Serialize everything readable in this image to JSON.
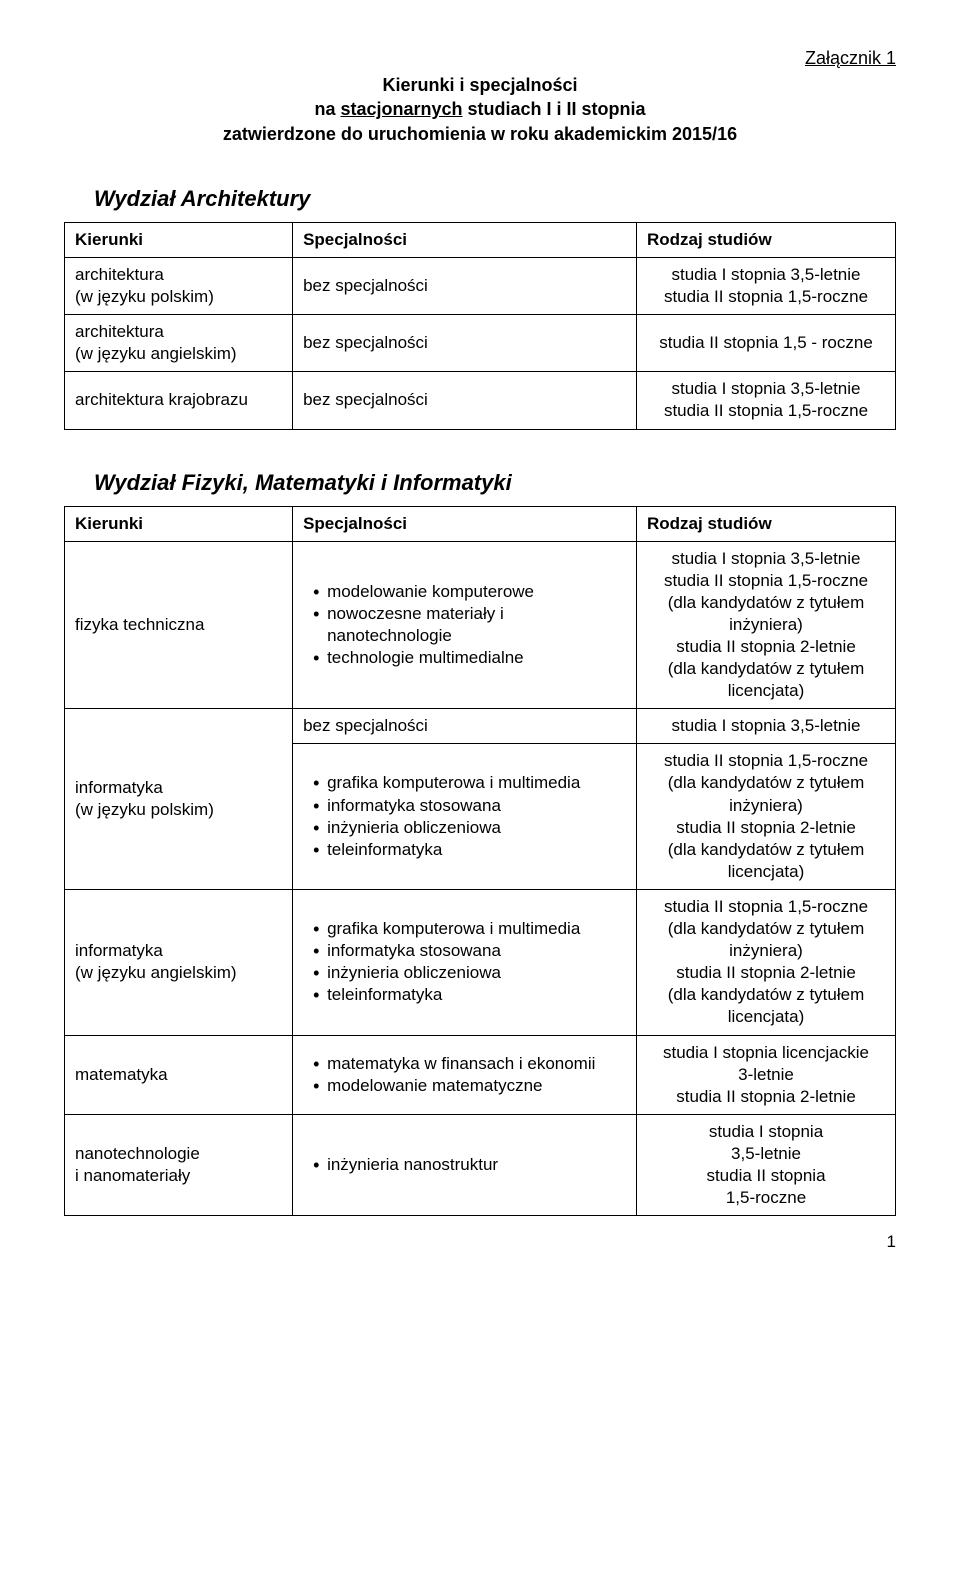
{
  "attachment_label": "Załącznik 1",
  "doc_title": {
    "line1": "Kierunki i specjalności",
    "line2a": "na ",
    "line2b": "stacjonarnych",
    "line2c": " studiach I i II stopnia",
    "line3": "zatwierdzone do uruchomienia w roku akademickim 2015/16"
  },
  "columns": {
    "kierunki": "Kierunki",
    "specjalnosci": "Specjalności",
    "rodzaj": "Rodzaj studiów"
  },
  "section1": {
    "title": "Wydział Architektury",
    "rows": [
      {
        "kierunek_line1": "architektura",
        "kierunek_line2": "(w języku polskim)",
        "spec": "bez specjalności",
        "rodzaj_line1": "studia I stopnia 3,5-letnie",
        "rodzaj_line2": "studia II stopnia 1,5-roczne"
      },
      {
        "kierunek_line1": "architektura",
        "kierunek_line2": "(w języku angielskim)",
        "spec": "bez specjalności",
        "rodzaj_single": "studia II stopnia 1,5 - roczne"
      },
      {
        "kierunek_line1": "architektura krajobrazu",
        "spec": "bez specjalności",
        "rodzaj_line1": "studia I stopnia 3,5-letnie",
        "rodzaj_line2": "studia II stopnia 1,5-roczne"
      }
    ]
  },
  "section2": {
    "title": "Wydział Fizyki, Matematyki i Informatyki",
    "rows": {
      "r1": {
        "kierunek": "fizyka techniczna",
        "spec_items": {
          "i1": "modelowanie komputerowe",
          "i2": "nowoczesne materiały i nanotechnologie",
          "i3": "technologie multimedialne"
        },
        "rodzaj": {
          "l1": "studia I stopnia 3,5-letnie",
          "l2": "studia II stopnia 1,5-roczne",
          "l3": "(dla kandydatów z tytułem",
          "l4": "inżyniera)",
          "l5": "studia II stopnia 2-letnie",
          "l6": "(dla kandydatów z tytułem",
          "l7": "licencjata)"
        }
      },
      "r2": {
        "spec": "bez specjalności",
        "rodzaj": "studia I stopnia 3,5-letnie"
      },
      "r3": {
        "kierunek_line1": "informatyka",
        "kierunek_line2": "(w języku polskim)",
        "spec_items": {
          "i1": "grafika komputerowa i multimedia",
          "i2": "informatyka stosowana",
          "i3": "inżynieria obliczeniowa",
          "i4": "teleinformatyka"
        },
        "rodzaj": {
          "l1": "studia II stopnia 1,5-roczne",
          "l2": "(dla kandydatów z tytułem",
          "l3": "inżyniera)",
          "l4": "studia II stopnia 2-letnie",
          "l5": "(dla kandydatów z tytułem",
          "l6": "licencjata)"
        }
      },
      "r4": {
        "kierunek_line1": "informatyka",
        "kierunek_line2": "(w języku angielskim)",
        "spec_items": {
          "i1": "grafika komputerowa i multimedia",
          "i2": "informatyka stosowana",
          "i3": "inżynieria obliczeniowa",
          "i4": "teleinformatyka"
        },
        "rodzaj": {
          "l1": "studia II stopnia 1,5-roczne",
          "l2": "(dla kandydatów z tytułem",
          "l3": "inżyniera)",
          "l4": "studia II stopnia 2-letnie",
          "l5": "(dla kandydatów z tytułem",
          "l6": "licencjata)"
        }
      },
      "r5": {
        "kierunek": "matematyka",
        "spec_items": {
          "i1": "matematyka w finansach i ekonomii",
          "i2": "modelowanie matematyczne"
        },
        "rodzaj": {
          "l1": "studia I stopnia licencjackie",
          "l2": "3-letnie",
          "l3": "studia II stopnia 2-letnie"
        }
      },
      "r6": {
        "kierunek_line1": "nanotechnologie",
        "kierunek_line2": "i nanomateriały",
        "spec_items": {
          "i1": "inżynieria nanostruktur"
        },
        "rodzaj": {
          "l1": "studia I stopnia",
          "l2": "3,5-letnie",
          "l3": "studia II stopnia",
          "l4": "1,5-roczne"
        }
      }
    }
  },
  "page_number": "1"
}
